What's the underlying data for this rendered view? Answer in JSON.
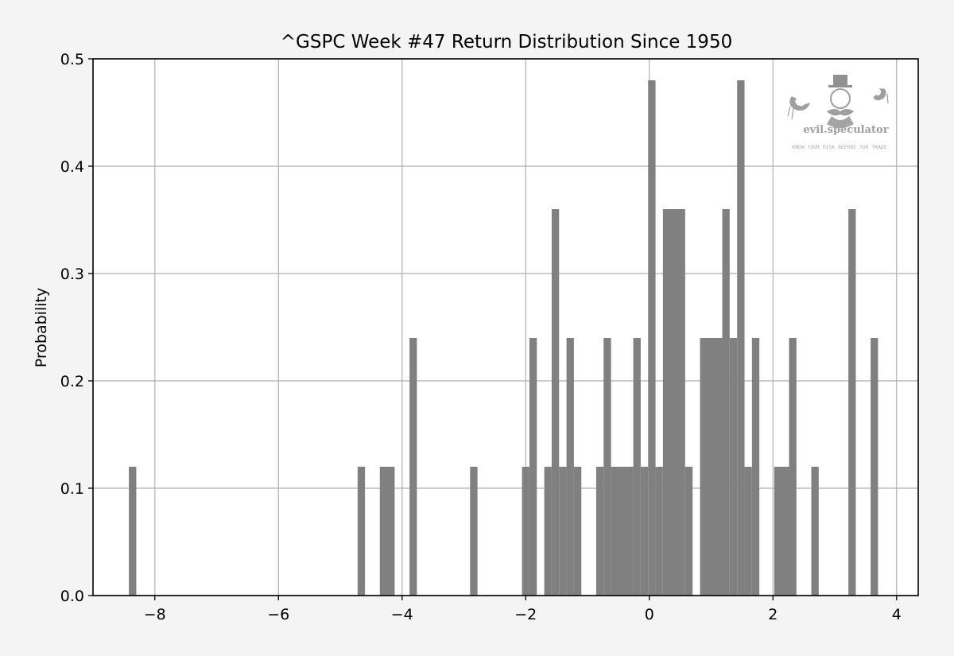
{
  "chart_data": {
    "type": "bar",
    "title": "^GSPC Week #47 Return Distribution Since 1950",
    "xlabel": "",
    "ylabel": "Probability",
    "xlim": [
      -9.0,
      4.35
    ],
    "ylim": [
      0.0,
      0.5
    ],
    "x_ticks": [
      -8,
      -6,
      -4,
      -2,
      0,
      2,
      4
    ],
    "x_tick_labels": [
      "−8",
      "−6",
      "−4",
      "−2",
      "0",
      "2",
      "4"
    ],
    "y_ticks": [
      0.0,
      0.1,
      0.2,
      0.3,
      0.4,
      0.5
    ],
    "y_tick_labels": [
      "0.0",
      "0.1",
      "0.2",
      "0.3",
      "0.4",
      "0.5"
    ],
    "grid": true,
    "bar_color": "#808080",
    "bins": [
      {
        "start": -8.42,
        "end": -8.3,
        "value": 0.12
      },
      {
        "start": -4.72,
        "end": -4.6,
        "value": 0.12
      },
      {
        "start": -4.36,
        "end": -4.12,
        "value": 0.12
      },
      {
        "start": -3.88,
        "end": -3.76,
        "value": 0.24
      },
      {
        "start": -2.9,
        "end": -2.78,
        "value": 0.12
      },
      {
        "start": -2.06,
        "end": -1.94,
        "value": 0.12
      },
      {
        "start": -1.94,
        "end": -1.82,
        "value": 0.24
      },
      {
        "start": -1.7,
        "end": -1.58,
        "value": 0.12
      },
      {
        "start": -1.58,
        "end": -1.46,
        "value": 0.36
      },
      {
        "start": -1.46,
        "end": -1.34,
        "value": 0.12
      },
      {
        "start": -1.34,
        "end": -1.22,
        "value": 0.24
      },
      {
        "start": -1.22,
        "end": -1.1,
        "value": 0.12
      },
      {
        "start": -0.86,
        "end": -0.74,
        "value": 0.12
      },
      {
        "start": -0.74,
        "end": -0.62,
        "value": 0.24
      },
      {
        "start": -0.62,
        "end": -0.26,
        "value": 0.12
      },
      {
        "start": -0.26,
        "end": -0.14,
        "value": 0.24
      },
      {
        "start": -0.14,
        "end": -0.02,
        "value": 0.12
      },
      {
        "start": -0.02,
        "end": 0.1,
        "value": 0.48
      },
      {
        "start": 0.1,
        "end": 0.22,
        "value": 0.12
      },
      {
        "start": 0.22,
        "end": 0.58,
        "value": 0.36
      },
      {
        "start": 0.58,
        "end": 0.7,
        "value": 0.12
      },
      {
        "start": 0.82,
        "end": 1.18,
        "value": 0.24
      },
      {
        "start": 1.18,
        "end": 1.3,
        "value": 0.36
      },
      {
        "start": 1.3,
        "end": 1.42,
        "value": 0.24
      },
      {
        "start": 1.42,
        "end": 1.54,
        "value": 0.48
      },
      {
        "start": 1.54,
        "end": 1.66,
        "value": 0.12
      },
      {
        "start": 1.66,
        "end": 1.78,
        "value": 0.24
      },
      {
        "start": 2.02,
        "end": 2.26,
        "value": 0.12
      },
      {
        "start": 2.26,
        "end": 2.38,
        "value": 0.24
      },
      {
        "start": 2.62,
        "end": 2.74,
        "value": 0.12
      },
      {
        "start": 3.22,
        "end": 3.34,
        "value": 0.36
      },
      {
        "start": 3.58,
        "end": 3.7,
        "value": 0.24
      }
    ]
  },
  "watermark": {
    "brand": "evil.speculator",
    "tagline": "KNOW YOUR RISK BEFORE YOU TRADE"
  }
}
